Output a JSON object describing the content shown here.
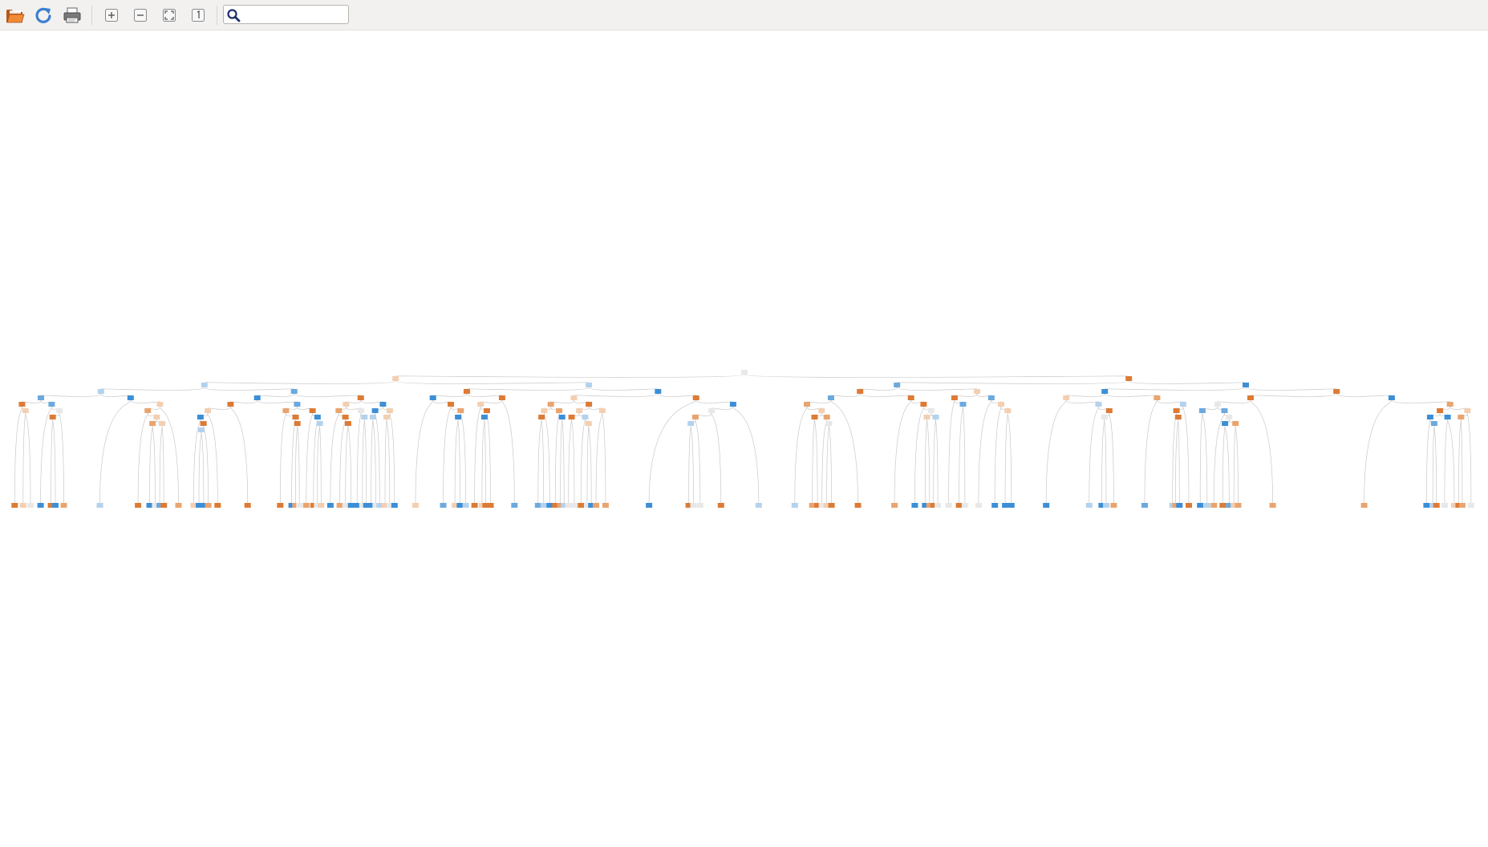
{
  "toolbar": {
    "buttons": [
      {
        "name": "open-button",
        "icon": "folder-open-icon"
      },
      {
        "name": "reload-button",
        "icon": "reload-icon"
      },
      {
        "name": "print-button",
        "icon": "printer-icon"
      },
      {
        "name": "zoom-in-button",
        "icon": "zoom-in-icon"
      },
      {
        "name": "zoom-out-button",
        "icon": "zoom-out-icon"
      },
      {
        "name": "zoom-fit-button",
        "icon": "zoom-fit-icon"
      },
      {
        "name": "zoom-original-button",
        "icon": "zoom-original-icon"
      }
    ],
    "search": {
      "icon": "search-icon",
      "value": "",
      "placeholder": ""
    }
  },
  "graph": {
    "type": "decision-tree",
    "node_colors": {
      "orange_strong": "#dd7b35",
      "orange_medium": "#e9a46f",
      "orange_light": "#f3cfb1",
      "neutral": "#e8e8e8",
      "blue_light": "#b3d2ee",
      "blue_medium": "#6ba9de",
      "blue_strong": "#3c8fd6"
    },
    "edge_color": "#c9c9c9"
  }
}
